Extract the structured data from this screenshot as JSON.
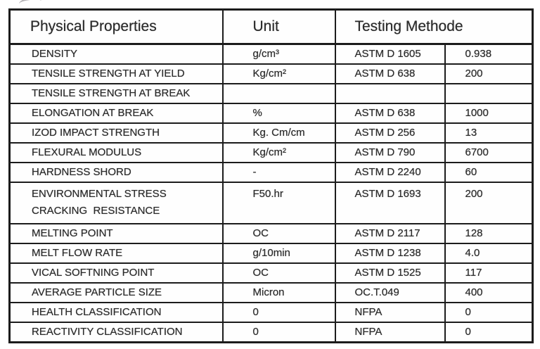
{
  "table": {
    "header": {
      "property": "Physical Properties",
      "unit": "Unit",
      "testing": "Testing Methode"
    },
    "rows": [
      {
        "property": "DENSITY",
        "unit": "g/cm³",
        "method": "ASTM D 1605",
        "value": "0.938"
      },
      {
        "property": "TENSILE STRENGTH AT YIELD",
        "unit": "Kg/cm²",
        "method": "ASTM D 638",
        "value": "200"
      },
      {
        "property": "TENSILE STRENGTH AT BREAK",
        "unit": "",
        "method": "",
        "value": ""
      },
      {
        "property": "ELONGATION AT BREAK",
        "unit": "%",
        "method": "ASTM D 638",
        "value": "1000"
      },
      {
        "property": "IZOD IMPACT STRENGTH",
        "unit": "Kg. Cm/cm",
        "method": "ASTM D 256",
        "value": "13"
      },
      {
        "property": "FLEXURAL MODULUS",
        "unit": "Kg/cm²",
        "method": "ASTM D 790",
        "value": "6700"
      },
      {
        "property": "HARDNESS SHORD",
        "unit": "-",
        "method": "ASTM D 2240",
        "value": "60"
      },
      {
        "property": "ENVIRONMENTAL STRESS\nCRACKING  RESISTANCE",
        "unit": "F50.hr",
        "method": "ASTM D 1693",
        "value": "200"
      },
      {
        "property": "MELTING POINT",
        "unit": "OC",
        "method": "ASTM D 2117",
        "value": "128"
      },
      {
        "property": "MELT FLOW RATE",
        "unit": "g/10min",
        "method": "ASTM D 1238",
        "value": "4.0"
      },
      {
        "property": "VICAL SOFTNING POINT",
        "unit": "OC",
        "method": "ASTM D 1525",
        "value": "117"
      },
      {
        "property": "AVERAGE PARTICLE SIZE",
        "unit": "Micron",
        "method": "OC.T.049",
        "value": "400"
      },
      {
        "property": "HEALTH CLASSIFICATION",
        "unit": "0",
        "method": "NFPA",
        "value": "0"
      },
      {
        "property": "REACTIVITY CLASSIFICATION",
        "unit": "0",
        "method": "NFPA",
        "value": "0"
      }
    ],
    "colors": {
      "border": "#1c1c1c",
      "text": "#2b2b2b",
      "page_background": "#ffffff"
    }
  }
}
